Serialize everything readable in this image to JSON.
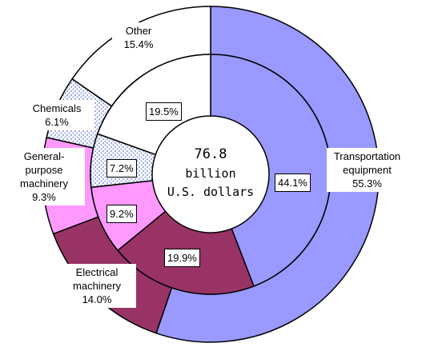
{
  "chart_data": {
    "type": "pie",
    "categories": [
      "Transportation equipment",
      "Electrical machinery",
      "General-purpose machinery",
      "Chemicals",
      "Other"
    ],
    "colors": [
      "#9999ff",
      "#993366",
      "#ff99ff",
      "#99a6e6",
      "#ffffff"
    ],
    "patterns": [
      null,
      null,
      null,
      "dots",
      null
    ],
    "rings": [
      {
        "values": [
          55.3,
          14.0,
          9.3,
          6.1,
          15.4
        ],
        "value_labels": [
          "55.3%",
          "14.0%",
          "9.3%",
          "6.1%",
          "15.4%"
        ]
      },
      {
        "values": [
          44.1,
          19.9,
          9.2,
          7.2,
          19.5
        ],
        "value_labels": [
          "44.1%",
          "19.9%",
          "9.2%",
          "7.2%",
          "19.5%"
        ]
      }
    ],
    "center_label": [
      "76.8",
      "billion",
      "U.S. dollars"
    ]
  }
}
